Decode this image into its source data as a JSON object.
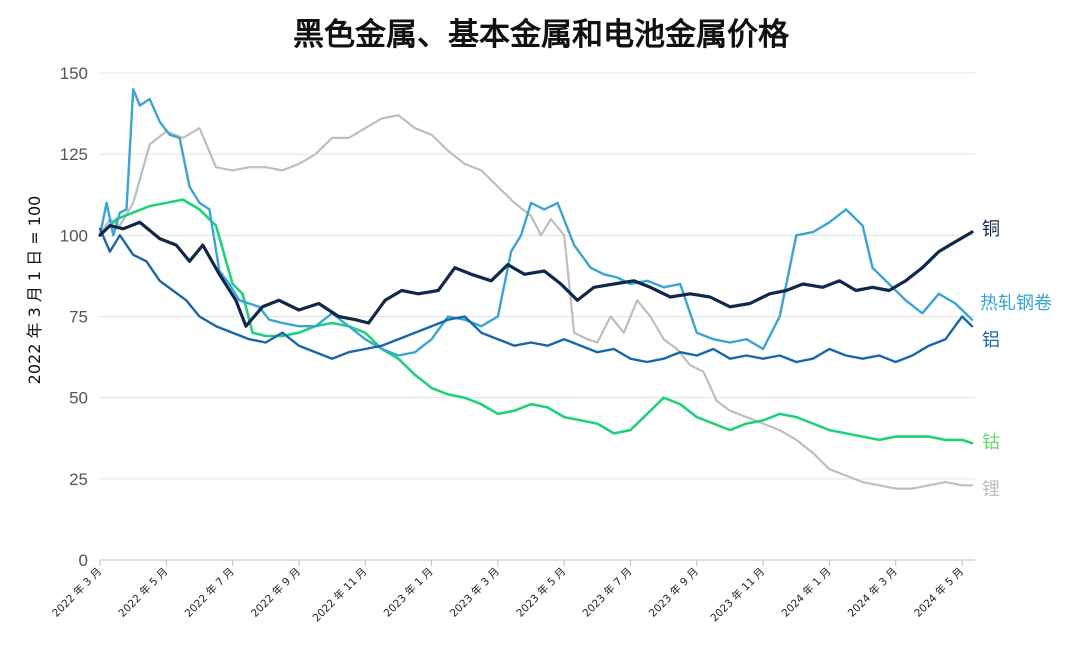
{
  "chart_data": {
    "type": "line",
    "title": "黑色金属、基本金属和电池金属价格",
    "ylabel": "2022 年 3 月 1 日 = 100",
    "xlabel": "",
    "ylim": [
      0,
      150
    ],
    "yticks": [
      0,
      25,
      50,
      75,
      100,
      125,
      150
    ],
    "x_tick_labels": [
      "2022 年 3 月",
      "2022 年 5 月",
      "2022 年 7 月",
      "2022 年 9 月",
      "2022 年 11 月",
      "2023 年 1 月",
      "2023 年 3 月",
      "2023 年 5 月",
      "2023 年 7 月",
      "2023 年 9 月",
      "2023 年 11 月",
      "2024 年 1 月",
      "2024 年 3 月",
      "2024 年 5 月"
    ],
    "x_months": [
      0,
      2,
      4,
      6,
      8,
      10,
      12,
      14,
      16,
      18,
      20,
      22,
      24,
      26
    ],
    "xlim_months": [
      0,
      26.3
    ],
    "grid": true,
    "series": [
      {
        "name": "铜",
        "color": "#10284a",
        "months": [
          0,
          0.3,
          0.7,
          1.2,
          1.8,
          2.3,
          2.7,
          3.1,
          3.6,
          4.1,
          4.4,
          4.9,
          5.4,
          6,
          6.6,
          7.2,
          7.7,
          8.1,
          8.6,
          9.1,
          9.6,
          10.2,
          10.7,
          11.2,
          11.8,
          12.3,
          12.8,
          13.4,
          13.9,
          14.4,
          14.9,
          15.5,
          16.1,
          16.6,
          17.2,
          17.8,
          18.4,
          19,
          19.6,
          20.2,
          20.7,
          21.2,
          21.8,
          22.3,
          22.8,
          23.3,
          23.8,
          24.3,
          24.8,
          25.3,
          25.8,
          26.3
        ],
        "values": [
          100,
          103,
          102,
          104,
          99,
          97,
          92,
          97,
          88,
          80,
          72,
          78,
          80,
          77,
          79,
          75,
          74,
          73,
          80,
          83,
          82,
          83,
          90,
          88,
          86,
          91,
          88,
          89,
          85,
          80,
          84,
          85,
          86,
          84,
          81,
          82,
          81,
          78,
          79,
          82,
          83,
          85,
          84,
          86,
          83,
          84,
          83,
          86,
          90,
          95,
          98,
          101
        ]
      },
      {
        "name": "热轧钢卷",
        "color": "#3aa4d3",
        "months": [
          0,
          0.2,
          0.4,
          0.6,
          0.8,
          1,
          1.2,
          1.5,
          1.8,
          2.1,
          2.4,
          2.7,
          3,
          3.3,
          3.6,
          3.9,
          4.2,
          4.5,
          4.8,
          5.1,
          5.5,
          6,
          6.5,
          7,
          7.5,
          8,
          8.5,
          9,
          9.5,
          10,
          10.5,
          11,
          11.5,
          12,
          12.4,
          12.7,
          13,
          13.4,
          13.8,
          14.3,
          14.8,
          15.2,
          15.6,
          16,
          16.5,
          17,
          17.5,
          18,
          18.5,
          19,
          19.5,
          20,
          20.5,
          21,
          21.5,
          22,
          22.5,
          23,
          23.3,
          23.8,
          24.3,
          24.8,
          25.3,
          25.8,
          26.3
        ],
        "values": [
          100,
          110,
          100,
          107,
          108,
          145,
          140,
          142,
          135,
          131,
          130,
          115,
          110,
          108,
          89,
          85,
          80,
          79,
          78,
          74,
          73,
          72,
          72,
          76,
          72,
          68,
          65,
          63,
          64,
          68,
          75,
          74,
          72,
          75,
          95,
          100,
          110,
          108,
          110,
          97,
          90,
          88,
          87,
          85,
          86,
          84,
          85,
          70,
          68,
          67,
          68,
          65,
          75,
          100,
          101,
          104,
          108,
          103,
          90,
          85,
          80,
          76,
          82,
          79,
          74
        ]
      },
      {
        "name": "铝",
        "color": "#1a66a6",
        "months": [
          0,
          0.3,
          0.6,
          1,
          1.4,
          1.8,
          2.2,
          2.6,
          3,
          3.5,
          4,
          4.5,
          5,
          5.5,
          6,
          6.5,
          7,
          7.5,
          8,
          8.5,
          9,
          9.5,
          10,
          10.5,
          11,
          11.5,
          12,
          12.5,
          13,
          13.5,
          14,
          14.5,
          15,
          15.5,
          16,
          16.5,
          17,
          17.5,
          18,
          18.5,
          19,
          19.5,
          20,
          20.5,
          21,
          21.5,
          22,
          22.5,
          23,
          23.5,
          24,
          24.5,
          25,
          25.5,
          26,
          26.3
        ],
        "values": [
          102,
          95,
          100,
          94,
          92,
          86,
          83,
          80,
          75,
          72,
          70,
          68,
          67,
          70,
          66,
          64,
          62,
          64,
          65,
          66,
          68,
          70,
          72,
          74,
          75,
          70,
          68,
          66,
          67,
          66,
          68,
          66,
          64,
          65,
          62,
          61,
          62,
          64,
          63,
          65,
          62,
          63,
          62,
          63,
          61,
          62,
          65,
          63,
          62,
          63,
          61,
          63,
          66,
          68,
          75,
          72
        ]
      },
      {
        "name": "钴",
        "color": "#1fd17a",
        "label_color": "#5de06a",
        "months": [
          0,
          0.5,
          1,
          1.5,
          2,
          2.5,
          3,
          3.5,
          4,
          4.3,
          4.6,
          5,
          5.5,
          6,
          6.5,
          7,
          7.5,
          8,
          8.5,
          9,
          9.5,
          10,
          10.5,
          11,
          11.5,
          12,
          12.5,
          13,
          13.5,
          14,
          14.5,
          15,
          15.5,
          16,
          16.5,
          17,
          17.5,
          18,
          18.5,
          19,
          19.5,
          20,
          20.5,
          21,
          21.5,
          22,
          22.5,
          23,
          23.5,
          24,
          24.5,
          25,
          25.5,
          26,
          26.3
        ],
        "values": [
          100,
          105,
          107,
          109,
          110,
          111,
          108,
          103,
          85,
          82,
          70,
          69,
          69,
          70,
          72,
          73,
          72,
          70,
          65,
          62,
          57,
          53,
          51,
          50,
          48,
          45,
          46,
          48,
          47,
          44,
          43,
          42,
          39,
          40,
          45,
          50,
          48,
          44,
          42,
          40,
          42,
          43,
          45,
          44,
          42,
          40,
          39,
          38,
          37,
          38,
          38,
          38,
          37,
          37,
          36
        ]
      },
      {
        "name": "锂",
        "color": "#bebebe",
        "months": [
          0,
          0.3,
          0.6,
          1,
          1.5,
          2,
          2.5,
          3,
          3.5,
          4,
          4.5,
          5,
          5.5,
          6,
          6.5,
          7,
          7.5,
          8,
          8.5,
          9,
          9.5,
          10,
          10.5,
          11,
          11.5,
          12,
          12.5,
          13,
          13.3,
          13.6,
          14,
          14.3,
          14.7,
          15,
          15.4,
          15.8,
          16.2,
          16.6,
          17,
          17.4,
          17.8,
          18.2,
          18.6,
          19,
          19.5,
          20,
          20.5,
          21,
          21.5,
          22,
          22.5,
          23,
          23.5,
          24,
          24.5,
          25,
          25.5,
          26,
          26.3
        ],
        "values": [
          100,
          105,
          103,
          110,
          128,
          132,
          130,
          133,
          121,
          120,
          121,
          121,
          120,
          122,
          125,
          130,
          130,
          133,
          136,
          137,
          133,
          131,
          126,
          122,
          120,
          115,
          110,
          106,
          100,
          105,
          100,
          70,
          68,
          67,
          75,
          70,
          80,
          75,
          68,
          65,
          60,
          58,
          49,
          46,
          44,
          42,
          40,
          37,
          33,
          28,
          26,
          24,
          23,
          22,
          22,
          23,
          24,
          23,
          23
        ]
      }
    ]
  }
}
